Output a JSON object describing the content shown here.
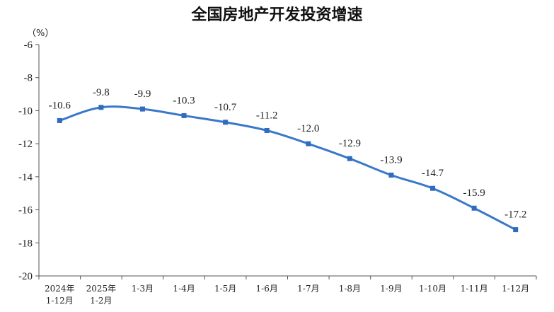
{
  "chart_data": {
    "type": "line",
    "title": "全国房地产开发投资增速",
    "ylabel": "（%）",
    "xlabel": "",
    "ylim": [
      -20,
      -6
    ],
    "yticks": [
      "-6",
      "-8",
      "-10",
      "-12",
      "-14",
      "-16",
      "-18",
      "-20"
    ],
    "categories": [
      [
        "2024年",
        "1-12月"
      ],
      [
        "2025年",
        "1-2月"
      ],
      [
        "1-3月"
      ],
      [
        "1-4月"
      ],
      [
        "1-5月"
      ],
      [
        "1-6月"
      ],
      [
        "1-7月"
      ],
      [
        "1-8月"
      ],
      [
        "1-9月"
      ],
      [
        "1-10月"
      ],
      [
        "1-11月"
      ],
      [
        "1-12月"
      ]
    ],
    "values": [
      -10.6,
      -9.8,
      -9.9,
      -10.3,
      -10.7,
      -11.2,
      -12.0,
      -12.9,
      -13.9,
      -14.7,
      -15.9,
      -17.2
    ],
    "labels": [
      "-10.6",
      "-9.8",
      "-9.9",
      "-10.3",
      "-10.7",
      "-11.2",
      "-12.0",
      "-12.9",
      "-13.9",
      "-14.7",
      "-15.9",
      "-17.2"
    ],
    "line_color": "#3a78c9",
    "axis_color": "#555555",
    "grid": false,
    "legend": "none"
  }
}
